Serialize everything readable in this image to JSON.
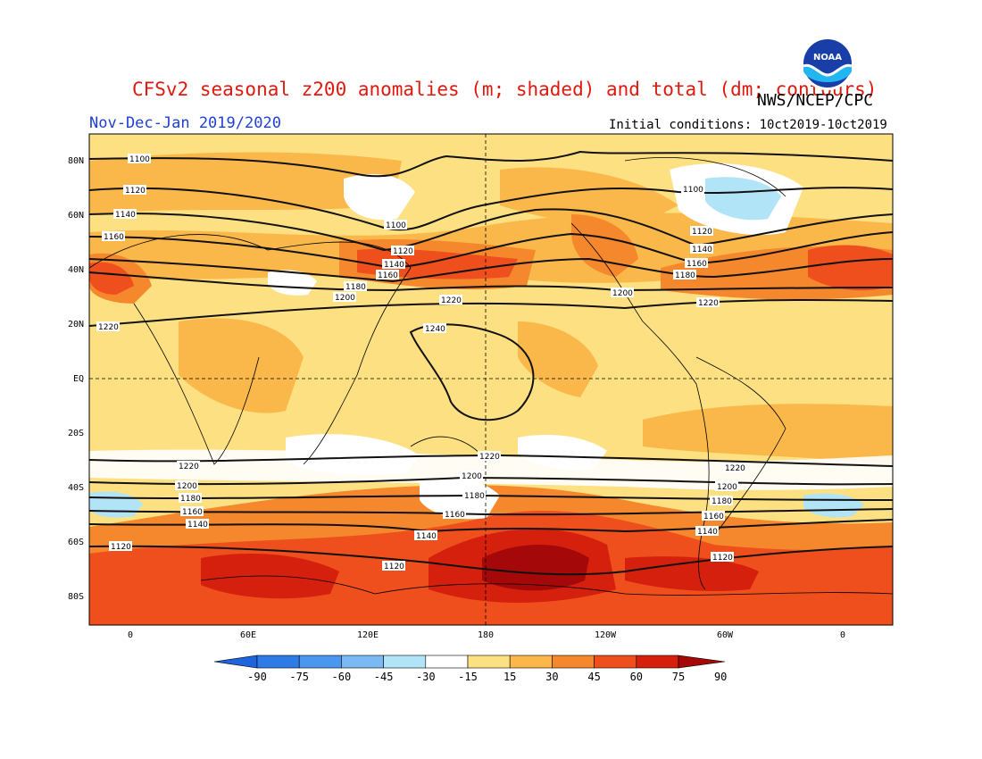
{
  "title": "CFSv2 seasonal z200 anomalies (m; shaded) and total (dm; contours)",
  "agency": "NWS/NCEP/CPC",
  "period": "Nov-Dec-Jan 2019/2020",
  "initial_conditions": "Initial conditions: 10ct2019-10ct2019",
  "logo_text": "NOAA",
  "lat_labels": [
    "80N",
    "60N",
    "40N",
    "20N",
    "EQ",
    "20S",
    "40S",
    "60S",
    "80S"
  ],
  "lon_labels": [
    "0",
    "60E",
    "120E",
    "180",
    "120W",
    "60W",
    "0"
  ],
  "colorbar": {
    "labels": [
      "-90",
      "-75",
      "-60",
      "-45",
      "-30",
      "-15",
      "15",
      "30",
      "45",
      "60",
      "75",
      "90"
    ],
    "colors": [
      "#1e64dc",
      "#2f7be6",
      "#4b96ee",
      "#7ab9f3",
      "#b2e4f7",
      "#ffffff",
      "#fde082",
      "#fbb84a",
      "#f5872c",
      "#ee4f1c",
      "#d6200e",
      "#a40808"
    ]
  },
  "contour_labels": [
    "1100",
    "1120",
    "1140",
    "1160",
    "1180",
    "1200",
    "1220",
    "1240"
  ]
}
